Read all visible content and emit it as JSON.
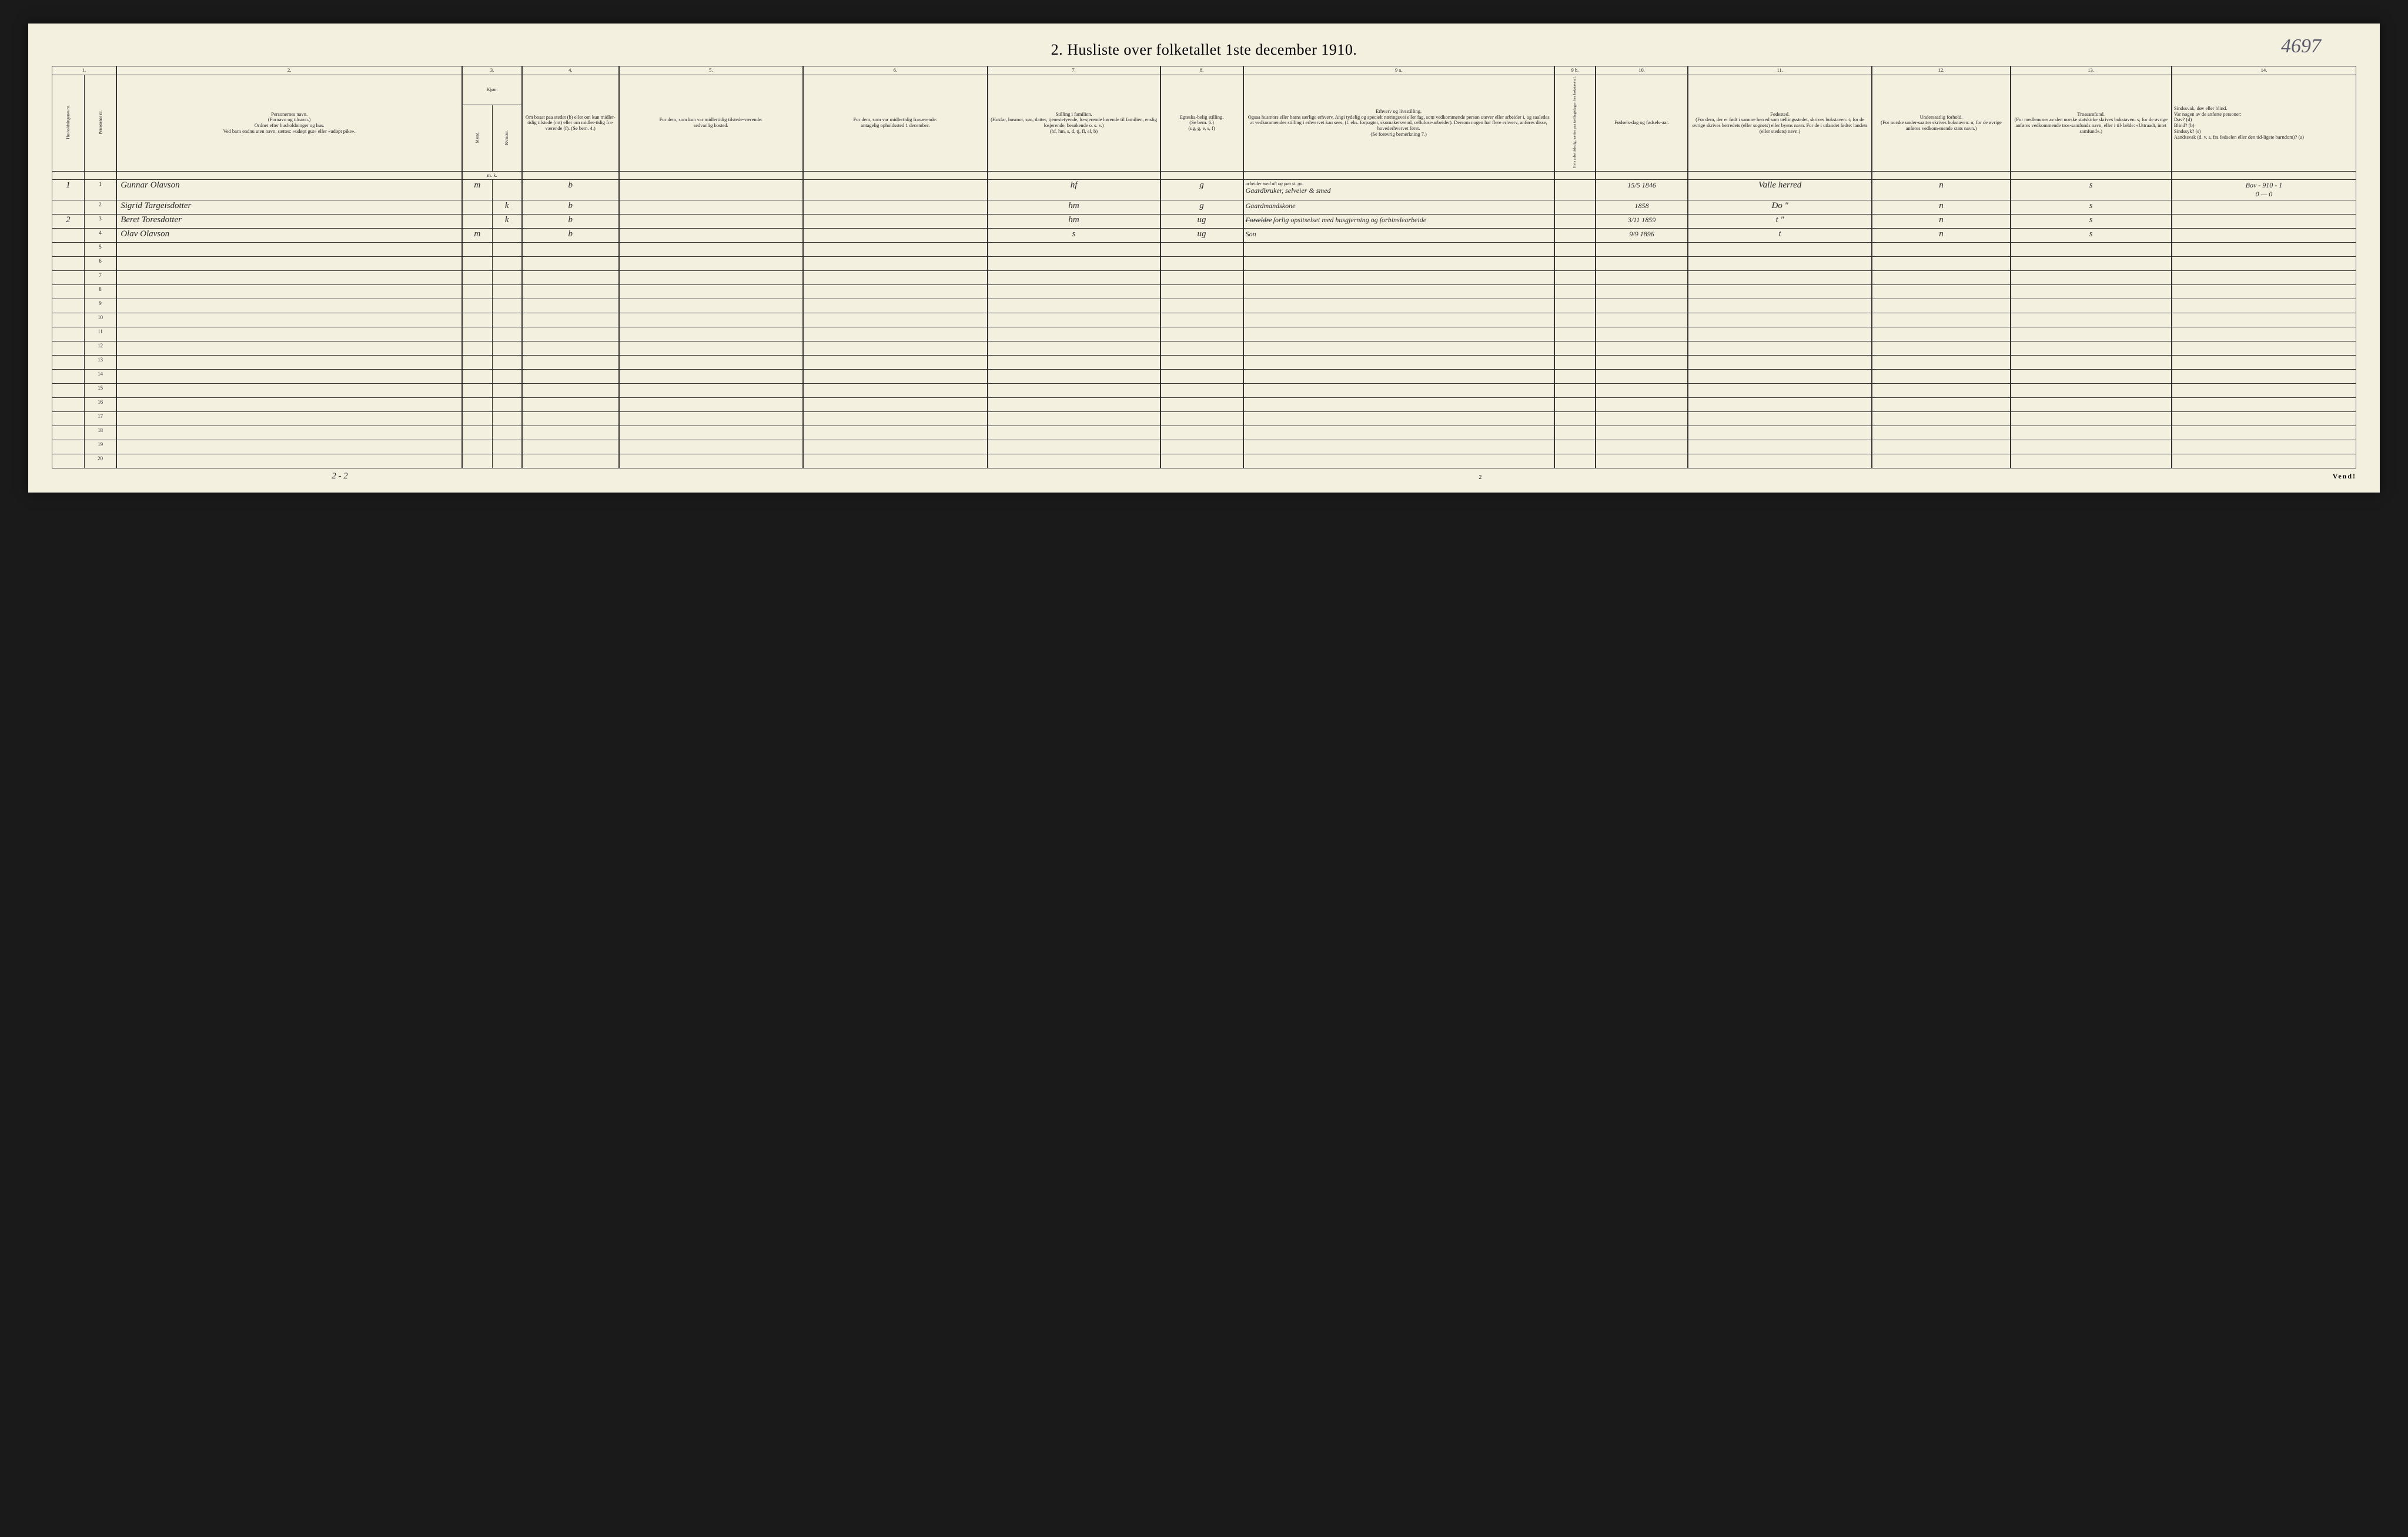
{
  "title": "2.  Husliste over folketallet 1ste december 1910.",
  "topRightNote": "4697",
  "columnNumbers": [
    "1.",
    "2.",
    "3.",
    "4.",
    "5.",
    "6.",
    "7.",
    "8.",
    "9 a.",
    "9 b.",
    "10.",
    "11.",
    "12.",
    "13.",
    "14."
  ],
  "headers": {
    "c1a": "Husholdningenes nr.",
    "c1b": "Personenes nr.",
    "c2": "Personernes navn.\n(Fornavn og tilnavn.)\nOrdnet efter husholdninger og hus.\nVed barn endnu uten navn, sættes: «udøpt gut» eller «udøpt pike».",
    "c3": "Kjøn.",
    "c3a": "Mænd.",
    "c3b": "Kvinder.",
    "c3c": "m.  k.",
    "c4": "Om bosat paa stedet (b) eller om kun midler-tidig tilstede (mt) eller om midler-tidig fra-værende (f). (Se bem. 4.)",
    "c5": "For dem, som kun var midlertidig tilstede-værende:\nsedvanlig bosted.",
    "c6": "For dem, som var midlertidig fraværende:\nantagelig opholdssted 1 december.",
    "c7": "Stilling i familien.\n(Husfar, husmor, søn, datter, tjenestetyende, lo-sjerende hørende til familien, enslig losjerende, besøkende o. s. v.)\n(hf, hm, s, d, tj, fl, el, b)",
    "c8": "Egteska-belig stilling.\n(Se bem. 6.)\n(ug, g, e, s, f)",
    "c9a": "Erhverv og livsstilling.\nOgsaa husmors eller barns særlige erhverv. Angi tydelig og specielt næringsvei eller fag, som vedkommende person utøver eller arbeider i, og saaledes at vedkommendes stilling i erhvervet kan sees, (f. eks. forpagter, skomakersvend, cellulose-arbeider). Dersom nogen har flere erhverv, anføres disse, hovederhvervet først.\n(Se forøvrig bemerkning 7.)",
    "c9b": "Hvis arbeidsledig, sættes paa tællingsdagen her bokstaven l.",
    "c10": "Fødsels-dag og fødsels-aar.",
    "c11": "Fødested.\n(For dem, der er født i samme herred som tællingsstedet, skrives bokstaven: t; for de øvrige skrives herredets (eller sognets) eller byens navn. For de i utlandet fødte: landets (eller stedets) navn.)",
    "c12": "Undersaatlig forhold.\n(For norske under-saatter skrives bokstaven: n; for de øvrige anføres vedkom-mende stats navn.)",
    "c13": "Trossamfund.\n(For medlemmer av den norske statskirke skrives bokstaven: s; for de øvrige anføres vedkommende tros-samfunds navn, eller i til-fælde: «Uttraadt, intet samfund».)",
    "c14": "Sindssvak, døv eller blind.\nVar nogen av de anførte personer:\nDøv?       (d)\nBlind?      (b)\nSindssyk?  (s)\nAandssvak (d. v. s. fra fødselen eller den tid-ligste barndom)?  (a)"
  },
  "rows": [
    {
      "hhNr": "1",
      "pNr": "1",
      "name": "Gunnar Olavson",
      "sexM": "m",
      "sexK": "",
      "c4": "b",
      "c5": "",
      "c6": "",
      "c7": "hf",
      "c8": "g",
      "c9a_above": "arbeider med alt og paa st. go.",
      "c9a": "Gaardbruker, selveier & smed",
      "c10": "15/5 1846",
      "c11": "Valle herred",
      "c12": "n",
      "c13": "s",
      "c14": "Bov - 910 - 1\n0  —  0"
    },
    {
      "hhNr": "",
      "pNr": "2",
      "name": "Sigrid Targeisdotter",
      "sexM": "",
      "sexK": "k",
      "c4": "b",
      "c5": "",
      "c6": "",
      "c7": "hm",
      "c8": "g",
      "c9a": "Gaardmandskone",
      "c10": "1858",
      "c11": "Do  \"",
      "c12": "n",
      "c13": "s",
      "c14": ""
    },
    {
      "hhNr": "2",
      "pNr": "3",
      "name": "Beret Toresdotter",
      "sexM": "",
      "sexK": "k",
      "c4": "b",
      "c5": "",
      "c6": "",
      "c7": "hm",
      "c8": "ug",
      "c9a_strike": "Forældre",
      "c9a": "forlig opsitselset med husgjerning og forbinslearbeide",
      "c10": "3/11 1859",
      "c11": "t  \"",
      "c12": "n",
      "c13": "s",
      "c14": ""
    },
    {
      "hhNr": "",
      "pNr": "4",
      "name": "Olav Olavson",
      "sexM": "m",
      "sexK": "",
      "c4": "b",
      "c5": "",
      "c6": "",
      "c7": "s",
      "c8": "ug",
      "c9a": "Son",
      "c10": "9/9 1896",
      "c11": "t",
      "c12": "n",
      "c13": "s",
      "c14": ""
    }
  ],
  "emptyRows": [
    5,
    6,
    7,
    8,
    9,
    10,
    11,
    12,
    13,
    14,
    15,
    16,
    17,
    18,
    19,
    20
  ],
  "footer": {
    "leftNote": "2 - 2",
    "centerPage": "2",
    "right": "Vend!"
  },
  "colWidths": {
    "c1a": "1.4%",
    "c1b": "1.4%",
    "c2": "15%",
    "c3a": "1.3%",
    "c3b": "1.3%",
    "c4": "4.2%",
    "c5": "8%",
    "c6": "8%",
    "c7": "7.5%",
    "c8": "3.6%",
    "c9a": "13.5%",
    "c9b": "1.8%",
    "c10": "4%",
    "c11": "8%",
    "c12": "6%",
    "c13": "7%",
    "c14": "8%"
  },
  "colors": {
    "paper": "#f4f0e0",
    "ink": "#222",
    "border": "#333",
    "pencil": "#5a5a6a"
  }
}
